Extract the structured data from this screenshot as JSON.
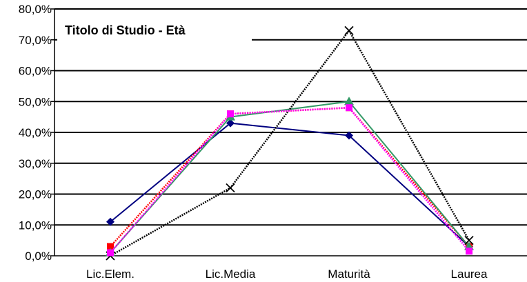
{
  "chart_data": {
    "type": "line",
    "title": "Titolo di Studio - Età",
    "xlabel": "",
    "ylabel": "",
    "categories": [
      "Lic.Elem.",
      "Lic.Media",
      "Maturità",
      "Laurea"
    ],
    "ylim": [
      0,
      80
    ],
    "yticks": [
      "0,0%",
      "10,0%",
      "20,0%",
      "30,0%",
      "40,0%",
      "50,0%",
      "60,0%",
      "70,0%",
      "80,0%"
    ],
    "grid": true,
    "series": [
      {
        "values": [
          11,
          43,
          39,
          3
        ],
        "color": "#000080",
        "line": "solid",
        "marker": "diamond"
      },
      {
        "values": [
          3,
          46,
          48,
          3
        ],
        "color": "#ff0000",
        "line": "dotted",
        "marker": "square"
      },
      {
        "values": [
          1,
          45,
          50,
          3
        ],
        "color": "#339966",
        "line": "solid",
        "marker": "triangle"
      },
      {
        "values": [
          0,
          22,
          73,
          5
        ],
        "color": "#000000",
        "line": "dotted",
        "marker": "x"
      },
      {
        "values": [
          1,
          46,
          48,
          1.5
        ],
        "color": "#ff00ff",
        "line": "dotted",
        "marker": "square"
      }
    ]
  }
}
